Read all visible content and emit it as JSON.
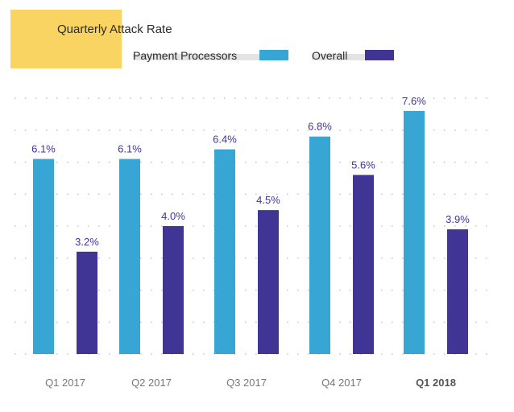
{
  "chart_data": {
    "type": "bar",
    "title": "Quarterly Attack Rate",
    "categories": [
      "Q1 2017",
      "Q2 2017",
      "Q3 2017",
      "Q4 2017",
      "Q1 2018"
    ],
    "highlighted_category": "Q1 2018",
    "series": [
      {
        "name": "Payment Processors",
        "color": "#38a6d4",
        "values": [
          6.1,
          6.1,
          6.4,
          6.8,
          7.6
        ],
        "labels": [
          "6.1%",
          "6.1%",
          "6.4%",
          "6.8%",
          "7.6%"
        ]
      },
      {
        "name": "Overall",
        "color": "#403594",
        "values": [
          3.2,
          4.0,
          4.5,
          5.6,
          3.9
        ],
        "labels": [
          "3.2%",
          "4.0%",
          "4.5%",
          "5.6%",
          "3.9%"
        ]
      }
    ],
    "ylim": [
      0,
      8
    ],
    "grid": true,
    "legend": "top",
    "title_accent_color": "#f9d463",
    "label_color": "#403594"
  }
}
